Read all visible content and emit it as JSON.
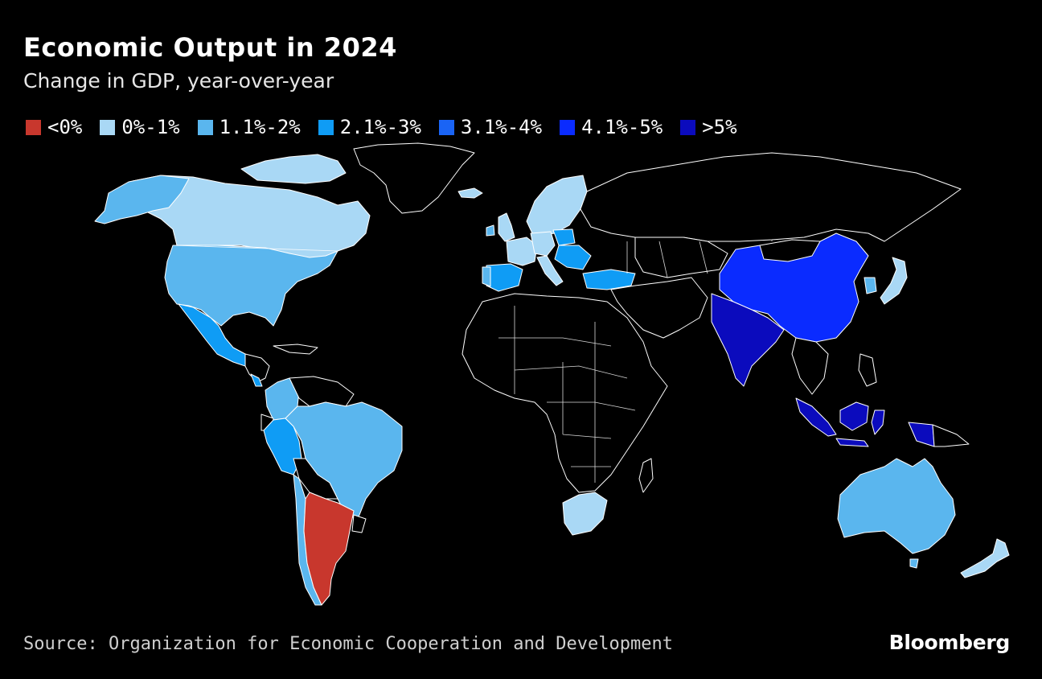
{
  "header": {
    "title": "Economic Output in 2024",
    "subtitle": "Change in GDP, year-over-year"
  },
  "legend": [
    {
      "label": "<0%",
      "color": "#c8372d"
    },
    {
      "label": "0%-1%",
      "color": "#a9d8f5"
    },
    {
      "label": "1.1%-2%",
      "color": "#5ab6ee"
    },
    {
      "label": "2.1%-3%",
      "color": "#0f9cf5"
    },
    {
      "label": "3.1%-4%",
      "color": "#1a64f5"
    },
    {
      "label": "4.1%-5%",
      "color": "#0a2bff"
    },
    {
      "label": ">5%",
      "color": "#0b0bbd"
    }
  ],
  "map_data": {
    "type": "choropleth",
    "regions": [
      {
        "name": "Canada",
        "bin": "0%-1%"
      },
      {
        "name": "United States",
        "bin": "1.1%-2%"
      },
      {
        "name": "Mexico",
        "bin": "2.1%-3%"
      },
      {
        "name": "Costa Rica",
        "bin": "2.1%-3%"
      },
      {
        "name": "Colombia",
        "bin": "1.1%-2%"
      },
      {
        "name": "Brazil",
        "bin": "1.1%-2%"
      },
      {
        "name": "Peru",
        "bin": "2.1%-3%"
      },
      {
        "name": "Chile",
        "bin": "1.1%-2%"
      },
      {
        "name": "Argentina",
        "bin": "<0%"
      },
      {
        "name": "Iceland",
        "bin": "0%-1%"
      },
      {
        "name": "Norway",
        "bin": "0%-1%"
      },
      {
        "name": "Sweden",
        "bin": "0%-1%"
      },
      {
        "name": "Finland",
        "bin": "0%-1%"
      },
      {
        "name": "United Kingdom",
        "bin": "0%-1%"
      },
      {
        "name": "Ireland",
        "bin": "1.1%-2%"
      },
      {
        "name": "France",
        "bin": "0%-1%"
      },
      {
        "name": "Spain",
        "bin": "2.1%-3%"
      },
      {
        "name": "Portugal",
        "bin": "1.1%-2%"
      },
      {
        "name": "Germany",
        "bin": "0%-1%"
      },
      {
        "name": "Italy",
        "bin": "0%-1%"
      },
      {
        "name": "Poland",
        "bin": "2.1%-3%"
      },
      {
        "name": "Turkey",
        "bin": "2.1%-3%"
      },
      {
        "name": "Russia",
        "bin": "no data"
      },
      {
        "name": "China",
        "bin": "4.1%-5%"
      },
      {
        "name": "India",
        "bin": ">5%"
      },
      {
        "name": "Indonesia",
        "bin": ">5%"
      },
      {
        "name": "Japan",
        "bin": "0%-1%"
      },
      {
        "name": "South Korea",
        "bin": "1.1%-2%"
      },
      {
        "name": "Australia",
        "bin": "1.1%-2%"
      },
      {
        "name": "New Zealand",
        "bin": "0%-1%"
      },
      {
        "name": "South Africa",
        "bin": "0%-1%"
      }
    ]
  },
  "footer": {
    "source": "Source: Organization for Economic Cooperation and Development",
    "brand": "Bloomberg"
  }
}
